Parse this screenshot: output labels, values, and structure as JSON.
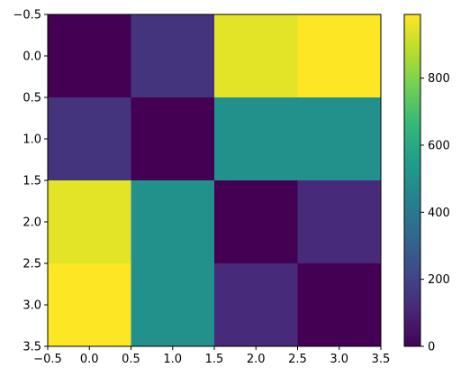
{
  "chart_data": {
    "type": "heatmap",
    "title": "",
    "xlabel": "",
    "ylabel": "",
    "x_ticks": [
      "−0.5",
      "0.0",
      "0.5",
      "1.0",
      "1.5",
      "2.0",
      "2.5",
      "3.0",
      "3.5"
    ],
    "y_ticks": [
      "−0.5",
      "0.0",
      "0.5",
      "1.0",
      "1.5",
      "2.0",
      "2.5",
      "3.0",
      "3.5"
    ],
    "xlim": [
      -0.5,
      3.5
    ],
    "ylim": [
      3.5,
      -0.5
    ],
    "values": [
      [
        0,
        150,
        950,
        990
      ],
      [
        150,
        0,
        500,
        500
      ],
      [
        950,
        500,
        0,
        120
      ],
      [
        990,
        500,
        120,
        0
      ]
    ],
    "colormap": "viridis",
    "colorbar": {
      "range": [
        0,
        990
      ],
      "ticks": [
        0,
        200,
        400,
        600,
        800
      ],
      "tick_labels": [
        "0",
        "200",
        "400",
        "600",
        "800"
      ]
    },
    "grid": false
  }
}
